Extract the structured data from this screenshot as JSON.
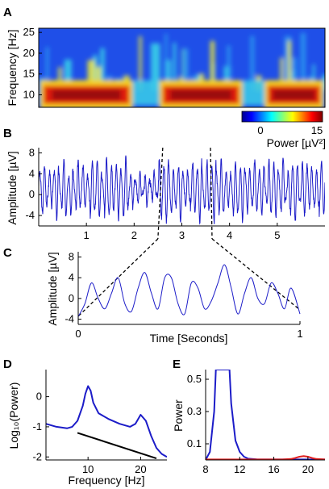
{
  "panels": {
    "a": {
      "label": "A"
    },
    "b": {
      "label": "B"
    },
    "c": {
      "label": "C"
    },
    "d": {
      "label": "D"
    },
    "e": {
      "label": "E"
    }
  },
  "colorbar": {
    "min": "0",
    "max": "15",
    "label": "Power [µV²]"
  },
  "chart_data": [
    {
      "panel": "A",
      "type": "heatmap",
      "ylabel": "Frequency [Hz]",
      "ylim": [
        7,
        26
      ],
      "yticks": [
        "25",
        "20",
        "15",
        "10"
      ],
      "xlim": [
        0,
        6
      ],
      "color_scale": {
        "min": 0,
        "max": 15,
        "colormap": "jet"
      },
      "bands": [
        {
          "freq": 10,
          "t_start": 0.1,
          "t_end": 1.9,
          "power": 15
        },
        {
          "freq": 10,
          "t_start": 2.6,
          "t_end": 4.2,
          "power": 14
        },
        {
          "freq": 10,
          "t_start": 4.8,
          "t_end": 5.9,
          "power": 13
        }
      ]
    },
    {
      "panel": "B",
      "type": "line",
      "ylabel": "Amplitude [µV]",
      "yticks": [
        "8",
        "4",
        "0",
        "-4"
      ],
      "ylim": [
        -6,
        9
      ],
      "xticks": [
        "1",
        "2",
        "3",
        "4",
        "5"
      ],
      "xlim": [
        0,
        6
      ],
      "carrier_freq_hz": 10,
      "zoom_window": [
        2.6,
        3.6
      ]
    },
    {
      "panel": "C",
      "type": "line",
      "xlabel": "Time [Seconds]",
      "ylabel": "Amplitude [µV]",
      "yticks": [
        "8",
        "4",
        "0",
        "-4"
      ],
      "ylim": [
        -5,
        9
      ],
      "xticks": [
        "0",
        "1"
      ],
      "xlim": [
        0,
        1
      ],
      "x": [
        0,
        0.03,
        0.06,
        0.09,
        0.12,
        0.15,
        0.18,
        0.21,
        0.24,
        0.27,
        0.3,
        0.33,
        0.36,
        0.39,
        0.42,
        0.45,
        0.48,
        0.51,
        0.54,
        0.57,
        0.6,
        0.63,
        0.66,
        0.69,
        0.72,
        0.75,
        0.78,
        0.81,
        0.84,
        0.87,
        0.9,
        0.93,
        0.96,
        1.0
      ],
      "y": [
        -3.5,
        -1,
        3,
        0,
        -2,
        1,
        4,
        -1,
        -2.5,
        2,
        5,
        1,
        -2,
        4,
        4,
        -1,
        -3,
        3,
        2,
        -2,
        -0.5,
        3,
        6.5,
        2,
        -3,
        1,
        4,
        0,
        -1,
        3,
        1,
        -2,
        2,
        -3
      ]
    },
    {
      "panel": "D",
      "type": "line",
      "xlabel": "Frequency [Hz]",
      "ylabel": "Log₁₀(Power)",
      "xticks": [
        "10",
        "20"
      ],
      "xlim": [
        2,
        25
      ],
      "yticks": [
        "0",
        "-1",
        "-2"
      ],
      "ylim": [
        -2.1,
        0.9
      ],
      "series": [
        {
          "x": [
            2,
            4,
            6,
            7,
            8,
            9,
            9.5,
            10,
            10.5,
            11,
            12,
            14,
            16,
            18,
            19,
            20,
            21,
            22,
            23,
            24,
            25
          ],
          "y": [
            -0.9,
            -1.0,
            -1.05,
            -1.0,
            -0.8,
            -0.3,
            0.1,
            0.35,
            0.2,
            -0.2,
            -0.55,
            -0.75,
            -0.9,
            -1.0,
            -0.9,
            -0.6,
            -0.8,
            -1.3,
            -1.7,
            -1.9,
            -2.0
          ],
          "color": "#1c1cc8"
        },
        {
          "x": [
            8,
            23
          ],
          "y": [
            -1.2,
            -2.05
          ],
          "color": "#000000"
        }
      ]
    },
    {
      "panel": "E",
      "type": "line",
      "ylabel": "Power",
      "xticks": [
        "8",
        "12",
        "16",
        "20"
      ],
      "xlim": [
        8,
        22
      ],
      "yticks": [
        "0.5",
        "0.3",
        "0.1"
      ],
      "ylim": [
        0,
        0.56
      ],
      "series": [
        {
          "x": [
            8,
            8.5,
            9,
            9.2,
            10.8,
            11,
            11.5,
            12,
            12.5,
            13,
            14,
            22
          ],
          "y": [
            0,
            0.05,
            0.3,
            0.56,
            0.56,
            0.35,
            0.12,
            0.05,
            0.02,
            0.008,
            0.004,
            0.003
          ],
          "color": "#1c1cc8"
        },
        {
          "x": [
            8,
            17,
            18,
            18.5,
            19,
            19.5,
            20,
            20.5,
            21,
            22
          ],
          "y": [
            0.003,
            0.003,
            0.006,
            0.012,
            0.02,
            0.024,
            0.02,
            0.012,
            0.006,
            0.003
          ],
          "color": "#e02020"
        }
      ]
    }
  ]
}
